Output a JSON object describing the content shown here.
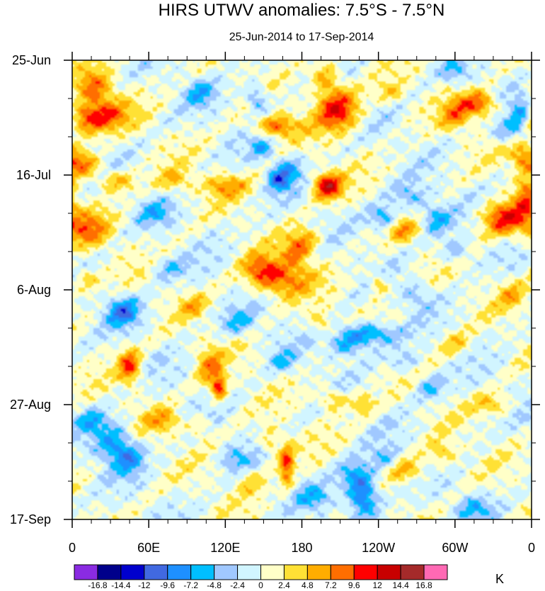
{
  "chart_data": {
    "type": "heatmap",
    "title": "HIRS UTWV anomalies: 7.5°S - 7.5°N",
    "subtitle": "25-Jun-2014 to 17-Sep-2014",
    "x_tick_labels": [
      "0",
      "60E",
      "120E",
      "180",
      "120W",
      "60W",
      "0"
    ],
    "x_ticks_deg": [
      0,
      60,
      120,
      180,
      240,
      300,
      360
    ],
    "x_range_deg": [
      0,
      360
    ],
    "y_tick_labels": [
      "25-Jun",
      "16-Jul",
      "6-Aug",
      "27-Aug",
      "17-Sep"
    ],
    "y_ticks_day": [
      0,
      21,
      42,
      63,
      84
    ],
    "y_range_day": [
      0,
      84
    ],
    "colorbar": {
      "unit": "K",
      "levels": [
        "-16.8",
        "-14.4",
        "-12",
        "-9.6",
        "-7.2",
        "-4.8",
        "-2.4",
        "0",
        "2.4",
        "4.8",
        "7.2",
        "9.6",
        "12",
        "14.4",
        "16.8"
      ],
      "level_values": [
        -16.8,
        -14.4,
        -12,
        -9.6,
        -7.2,
        -4.8,
        -2.4,
        0,
        2.4,
        4.8,
        7.2,
        9.6,
        12,
        14.4,
        16.8
      ],
      "colors": [
        "#8a2be2",
        "#00008b",
        "#0000cd",
        "#4169e1",
        "#1e90ff",
        "#00bfff",
        "#a0c8ff",
        "#d1f5ff",
        "#ffffc8",
        "#ffe135",
        "#ffad00",
        "#ff6e00",
        "#ff0000",
        "#c80000",
        "#a52a2a",
        "#ff69b4"
      ]
    },
    "anomaly_features": [
      {
        "lon": 18,
        "day": 5,
        "amp": 7.5,
        "sx": 10,
        "sy": 2.2
      },
      {
        "lon": 25,
        "day": 10,
        "amp": 8.5,
        "sx": 14,
        "sy": 2.0
      },
      {
        "lon": 8,
        "day": 11,
        "amp": 6.5,
        "sx": 10,
        "sy": 1.8
      },
      {
        "lon": 8,
        "day": 19,
        "amp": 8.5,
        "sx": 9,
        "sy": 1.6
      },
      {
        "lon": 35,
        "day": 22,
        "amp": 6.0,
        "sx": 10,
        "sy": 1.4
      },
      {
        "lon": 12,
        "day": 31,
        "amp": 7.5,
        "sx": 12,
        "sy": 2.2
      },
      {
        "lon": 10,
        "day": 40,
        "amp": 5.0,
        "sx": 8,
        "sy": 1.5
      },
      {
        "lon": 45,
        "day": 56,
        "amp": 9.5,
        "sx": 6,
        "sy": 2.2
      },
      {
        "lon": 72,
        "day": 66,
        "amp": 5.5,
        "sx": 10,
        "sy": 1.6
      },
      {
        "lon": 115,
        "day": 60,
        "amp": 10.5,
        "sx": 4,
        "sy": 1.6
      },
      {
        "lon": 108,
        "day": 56,
        "amp": 6.5,
        "sx": 7,
        "sy": 2.5
      },
      {
        "lon": 168,
        "day": 74,
        "amp": 9.5,
        "sx": 4,
        "sy": 3.0
      },
      {
        "lon": 155,
        "day": 70,
        "amp": 4.5,
        "sx": 5,
        "sy": 2.0
      },
      {
        "lon": 163,
        "day": 40,
        "amp": 8.5,
        "sx": 16,
        "sy": 2.2
      },
      {
        "lon": 175,
        "day": 35,
        "amp": 6.5,
        "sx": 8,
        "sy": 2.0
      },
      {
        "lon": 148,
        "day": 38,
        "amp": 6.0,
        "sx": 10,
        "sy": 2.0
      },
      {
        "lon": 200,
        "day": 23,
        "amp": 12.5,
        "sx": 8,
        "sy": 1.7
      },
      {
        "lon": 208,
        "day": 9,
        "amp": 11.0,
        "sx": 12,
        "sy": 2.8
      },
      {
        "lon": 198,
        "day": 3,
        "amp": 6.5,
        "sx": 8,
        "sy": 2.0
      },
      {
        "lon": 160,
        "day": 12,
        "amp": 8.5,
        "sx": 12,
        "sy": 1.4
      },
      {
        "lon": 120,
        "day": 23,
        "amp": 6.0,
        "sx": 12,
        "sy": 1.4
      },
      {
        "lon": 80,
        "day": 22,
        "amp": 4.5,
        "sx": 10,
        "sy": 1.5
      },
      {
        "lon": 318,
        "day": 8,
        "amp": 9.5,
        "sx": 10,
        "sy": 1.6
      },
      {
        "lon": 300,
        "day": 10,
        "amp": 6.0,
        "sx": 8,
        "sy": 2.0
      },
      {
        "lon": 338,
        "day": 29,
        "amp": 10.5,
        "sx": 12,
        "sy": 2.2
      },
      {
        "lon": 355,
        "day": 25,
        "amp": 6.5,
        "sx": 6,
        "sy": 3.0
      },
      {
        "lon": 352,
        "day": 17,
        "amp": 6.5,
        "sx": 7,
        "sy": 1.8
      },
      {
        "lon": 258,
        "day": 31,
        "amp": 6.5,
        "sx": 8,
        "sy": 1.4
      },
      {
        "lon": 240,
        "day": 41,
        "amp": 5.5,
        "sx": 5,
        "sy": 1.5
      },
      {
        "lon": 205,
        "day": 62,
        "amp": 6.0,
        "sx": 8,
        "sy": 1.4
      },
      {
        "lon": 228,
        "day": 63,
        "amp": 5.0,
        "sx": 6,
        "sy": 1.4
      },
      {
        "lon": 262,
        "day": 75,
        "amp": 6.0,
        "sx": 10,
        "sy": 1.6
      },
      {
        "lon": 290,
        "day": 72,
        "amp": 5.0,
        "sx": 8,
        "sy": 1.6
      },
      {
        "lon": 330,
        "day": 63,
        "amp": 5.0,
        "sx": 10,
        "sy": 1.4
      },
      {
        "lon": 345,
        "day": 43,
        "amp": 4.5,
        "sx": 8,
        "sy": 1.8
      },
      {
        "lon": 100,
        "day": 67,
        "amp": 4.0,
        "sx": 6,
        "sy": 1.4
      },
      {
        "lon": 250,
        "day": 6,
        "amp": 4.0,
        "sx": 8,
        "sy": 1.4
      },
      {
        "lon": 140,
        "day": 77,
        "amp": 4.0,
        "sx": 8,
        "sy": 1.6
      },
      {
        "lon": 95,
        "day": 45,
        "amp": 4.0,
        "sx": 8,
        "sy": 1.4
      },
      {
        "lon": 185,
        "day": 33,
        "amp": 5.0,
        "sx": 8,
        "sy": 1.6
      },
      {
        "lon": 300,
        "day": 52,
        "amp": 4.5,
        "sx": 8,
        "sy": 1.6
      },
      {
        "lon": 195,
        "day": 48,
        "amp": 4.0,
        "sx": 6,
        "sy": 1.5
      },
      {
        "lon": 162,
        "day": 22,
        "amp": -8.5,
        "sx": 6,
        "sy": 1.4
      },
      {
        "lon": 170,
        "day": 20,
        "amp": -5.5,
        "sx": 8,
        "sy": 1.6
      },
      {
        "lon": 145,
        "day": 7,
        "amp": -6.5,
        "sx": 6,
        "sy": 2.0
      },
      {
        "lon": 148,
        "day": 16,
        "amp": -5.5,
        "sx": 6,
        "sy": 1.4
      },
      {
        "lon": 245,
        "day": 29,
        "amp": -7.5,
        "sx": 8,
        "sy": 1.6
      },
      {
        "lon": 265,
        "day": 25,
        "amp": -5.0,
        "sx": 10,
        "sy": 1.6
      },
      {
        "lon": 232,
        "day": 50,
        "amp": -9.0,
        "sx": 14,
        "sy": 1.4
      },
      {
        "lon": 215,
        "day": 52,
        "amp": -6.5,
        "sx": 10,
        "sy": 1.6
      },
      {
        "lon": 228,
        "day": 80,
        "amp": -10.5,
        "sx": 8,
        "sy": 2.4
      },
      {
        "lon": 222,
        "day": 76,
        "amp": -7.0,
        "sx": 10,
        "sy": 2.0
      },
      {
        "lon": 245,
        "day": 73,
        "amp": -5.0,
        "sx": 8,
        "sy": 1.6
      },
      {
        "lon": 40,
        "day": 46,
        "amp": -8.5,
        "sx": 9,
        "sy": 1.8
      },
      {
        "lon": 32,
        "day": 70,
        "amp": -7.5,
        "sx": 10,
        "sy": 2.6
      },
      {
        "lon": 45,
        "day": 73,
        "amp": -6.0,
        "sx": 8,
        "sy": 2.0
      },
      {
        "lon": 15,
        "day": 66,
        "amp": -5.0,
        "sx": 8,
        "sy": 1.6
      },
      {
        "lon": 352,
        "day": 10,
        "amp": -7.0,
        "sx": 6,
        "sy": 2.0
      },
      {
        "lon": 342,
        "day": 13,
        "amp": -5.5,
        "sx": 8,
        "sy": 1.6
      },
      {
        "lon": 285,
        "day": 29,
        "amp": -6.0,
        "sx": 8,
        "sy": 1.8
      },
      {
        "lon": 280,
        "day": 60,
        "amp": -5.0,
        "sx": 8,
        "sy": 1.6
      },
      {
        "lon": 300,
        "day": 35,
        "amp": -5.0,
        "sx": 8,
        "sy": 1.6
      },
      {
        "lon": 130,
        "day": 48,
        "amp": -5.0,
        "sx": 10,
        "sy": 1.6
      },
      {
        "lon": 100,
        "day": 6,
        "amp": -5.0,
        "sx": 8,
        "sy": 1.6
      },
      {
        "lon": 65,
        "day": 28,
        "amp": -4.5,
        "sx": 10,
        "sy": 1.6
      },
      {
        "lon": 190,
        "day": 80,
        "amp": -5.0,
        "sx": 10,
        "sy": 1.6
      },
      {
        "lon": 128,
        "day": 73,
        "amp": -4.5,
        "sx": 8,
        "sy": 1.6
      },
      {
        "lon": 315,
        "day": 82,
        "amp": -5.0,
        "sx": 10,
        "sy": 1.6
      },
      {
        "lon": 270,
        "day": 43,
        "amp": -4.0,
        "sx": 8,
        "sy": 1.6
      },
      {
        "lon": 260,
        "day": 55,
        "amp": -4.0,
        "sx": 10,
        "sy": 1.6
      },
      {
        "lon": 75,
        "day": 38,
        "amp": -4.0,
        "sx": 10,
        "sy": 1.6
      },
      {
        "lon": 165,
        "day": 55,
        "amp": -4.0,
        "sx": 8,
        "sy": 1.6
      },
      {
        "lon": 300,
        "day": 2,
        "amp": -4.0,
        "sx": 8,
        "sy": 1.4
      }
    ]
  }
}
